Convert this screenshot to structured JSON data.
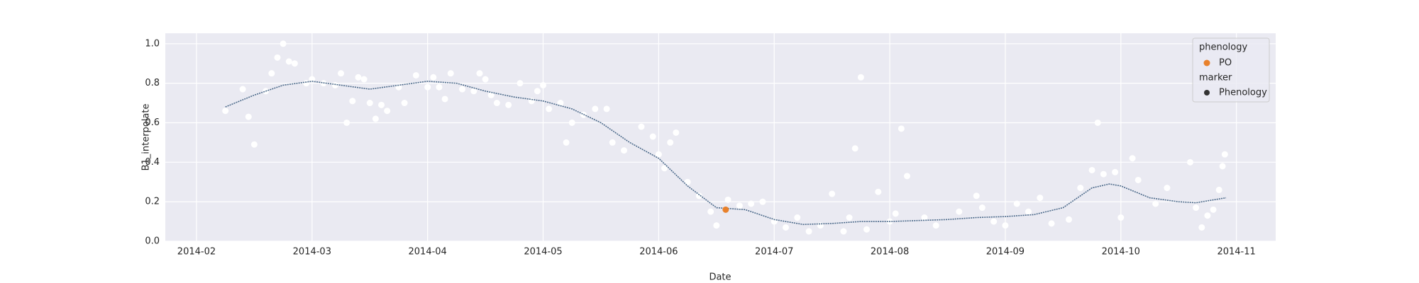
{
  "chart_data": {
    "type": "scatter",
    "xlabel": "Date",
    "ylabel": "B1_interpolate",
    "xlim": [
      1.73,
      11.34
    ],
    "ylim": [
      0,
      1.053
    ],
    "xticks": [
      {
        "value": 2,
        "label": "2014-02"
      },
      {
        "value": 3,
        "label": "2014-03"
      },
      {
        "value": 4,
        "label": "2014-04"
      },
      {
        "value": 5,
        "label": "2014-05"
      },
      {
        "value": 6,
        "label": "2014-06"
      },
      {
        "value": 7,
        "label": "2014-07"
      },
      {
        "value": 8,
        "label": "2014-08"
      },
      {
        "value": 9,
        "label": "2014-09"
      },
      {
        "value": 10,
        "label": "2014-10"
      },
      {
        "value": 11,
        "label": "2014-11"
      }
    ],
    "yticks": [
      {
        "value": 0,
        "label": "0.0"
      },
      0.2,
      0.4,
      0.6,
      0.8,
      {
        "value": 1,
        "label": "1.0"
      }
    ],
    "grid": true,
    "series": [
      {
        "type": "scatter",
        "color": "#ffffff",
        "x": [
          2.25,
          2.4,
          2.45,
          2.5,
          2.6,
          2.65,
          2.7,
          2.75,
          2.8,
          2.85,
          2.95,
          3.0,
          3.1,
          3.2,
          3.25,
          3.3,
          3.35,
          3.4,
          3.45,
          3.5,
          3.55,
          3.6,
          3.65,
          3.75,
          3.8,
          3.9,
          4.0,
          4.05,
          4.1,
          4.15,
          4.2,
          4.3,
          4.4,
          4.45,
          4.5,
          4.55,
          4.6,
          4.7,
          4.8,
          4.9,
          4.95,
          5.0,
          5.05,
          5.15,
          5.2,
          5.25,
          5.35,
          5.45,
          5.55,
          5.6,
          5.7,
          5.85,
          5.95,
          6.0,
          6.05,
          6.1,
          6.15,
          6.25,
          6.35,
          6.45,
          6.5,
          6.6,
          6.7,
          6.8,
          6.9,
          7.0,
          7.1,
          7.2,
          7.3,
          7.4,
          7.5,
          7.6,
          7.65,
          7.7,
          7.75,
          7.8,
          7.9,
          8.0,
          8.05,
          8.1,
          8.15,
          8.3,
          8.4,
          8.6,
          8.75,
          8.8,
          8.9,
          9.0,
          9.1,
          9.2,
          9.3,
          9.4,
          9.55,
          9.65,
          9.75,
          9.8,
          9.85,
          9.95,
          10.0,
          10.1,
          10.15,
          10.3,
          10.4,
          10.6,
          10.65,
          10.7,
          10.75,
          10.8,
          10.85,
          10.88,
          10.9
        ],
        "values": [
          0.66,
          0.77,
          0.63,
          0.49,
          0.76,
          0.85,
          0.93,
          1.0,
          0.91,
          0.9,
          0.8,
          0.82,
          0.8,
          0.79,
          0.85,
          0.6,
          0.71,
          0.83,
          0.82,
          0.7,
          0.62,
          0.69,
          0.66,
          0.78,
          0.7,
          0.84,
          0.78,
          0.83,
          0.78,
          0.72,
          0.85,
          0.77,
          0.76,
          0.85,
          0.82,
          0.74,
          0.7,
          0.69,
          0.8,
          0.71,
          0.76,
          0.79,
          0.67,
          0.7,
          0.5,
          0.6,
          0.64,
          0.67,
          0.67,
          0.5,
          0.46,
          0.58,
          0.53,
          0.44,
          0.37,
          0.5,
          0.55,
          0.3,
          0.23,
          0.15,
          0.08,
          0.21,
          0.18,
          0.19,
          0.2,
          0.1,
          0.07,
          0.12,
          0.05,
          0.08,
          0.24,
          0.05,
          0.12,
          0.47,
          0.83,
          0.06,
          0.25,
          0.1,
          0.14,
          0.57,
          0.33,
          0.12,
          0.08,
          0.15,
          0.23,
          0.17,
          0.1,
          0.08,
          0.19,
          0.15,
          0.22,
          0.09,
          0.11,
          0.27,
          0.36,
          0.6,
          0.34,
          0.35,
          0.12,
          0.42,
          0.31,
          0.19,
          0.27,
          0.4,
          0.17,
          0.07,
          0.13,
          0.16,
          0.26,
          0.38,
          0.44
        ]
      },
      {
        "type": "line",
        "color": "#4c6a8a",
        "x": [
          2.25,
          2.5,
          2.75,
          3.0,
          3.25,
          3.5,
          3.75,
          4.0,
          4.25,
          4.5,
          4.75,
          5.0,
          5.25,
          5.5,
          5.75,
          6.0,
          6.25,
          6.5,
          6.75,
          7.0,
          7.25,
          7.5,
          7.75,
          8.0,
          8.25,
          8.5,
          8.75,
          9.0,
          9.25,
          9.5,
          9.75,
          9.9,
          10.0,
          10.25,
          10.5,
          10.65,
          10.91
        ],
        "values": [
          0.68,
          0.74,
          0.79,
          0.81,
          0.79,
          0.77,
          0.79,
          0.81,
          0.8,
          0.76,
          0.73,
          0.71,
          0.67,
          0.6,
          0.5,
          0.42,
          0.28,
          0.17,
          0.16,
          0.11,
          0.085,
          0.09,
          0.1,
          0.1,
          0.105,
          0.11,
          0.12,
          0.125,
          0.135,
          0.17,
          0.27,
          0.29,
          0.28,
          0.22,
          0.2,
          0.195,
          0.22
        ]
      },
      {
        "type": "scatter",
        "name": "PO",
        "color": "#e8812c",
        "x": [
          6.58
        ],
        "values": [
          0.16
        ]
      }
    ],
    "legend": {
      "loc": "upper right",
      "title": "phenology",
      "marker_title": "marker",
      "marker_label": "Phenology",
      "marker_color": "#333333"
    }
  }
}
